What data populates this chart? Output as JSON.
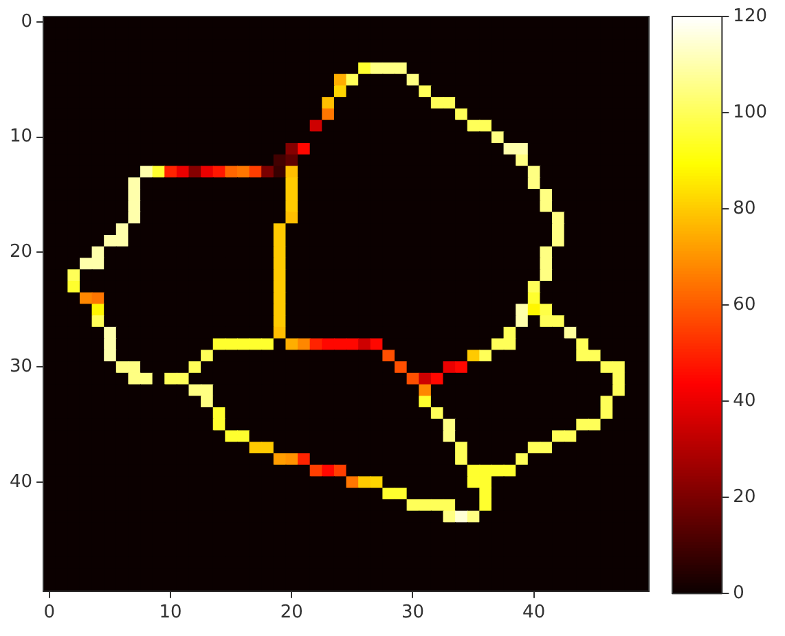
{
  "chart_data": {
    "type": "heatmap",
    "xlim": [
      -0.5,
      49.5
    ],
    "ylim": [
      49.5,
      -0.5
    ],
    "xticks": [
      0,
      10,
      20,
      30,
      40
    ],
    "yticks": [
      0,
      10,
      20,
      30,
      40
    ],
    "clim": [
      0,
      120
    ],
    "cticks": [
      0,
      20,
      40,
      60,
      80,
      100,
      120
    ],
    "cells": [
      [
        0,
        0,
        0,
        0,
        0,
        0,
        0,
        0,
        0,
        0,
        0,
        0,
        0,
        0,
        0,
        0,
        0,
        0,
        0,
        0,
        0,
        0,
        0,
        0,
        0,
        0,
        0,
        0,
        0,
        0,
        0,
        0,
        0,
        0,
        0,
        0,
        0,
        0,
        0,
        0,
        0,
        0,
        0,
        0,
        0,
        0,
        0,
        0,
        0,
        0
      ],
      [
        0,
        0,
        0,
        0,
        0,
        0,
        0,
        0,
        0,
        0,
        0,
        0,
        0,
        0,
        0,
        0,
        0,
        0,
        0,
        0,
        0,
        0,
        0,
        0,
        0,
        0,
        0,
        0,
        0,
        0,
        0,
        0,
        0,
        0,
        0,
        0,
        0,
        0,
        0,
        0,
        0,
        0,
        0,
        0,
        0,
        0,
        0,
        0,
        0,
        0
      ],
      [
        0,
        0,
        0,
        0,
        0,
        0,
        0,
        0,
        0,
        0,
        0,
        0,
        0,
        0,
        0,
        0,
        0,
        0,
        0,
        0,
        0,
        0,
        0,
        0,
        0,
        0,
        0,
        0,
        0,
        0,
        0,
        0,
        0,
        0,
        0,
        0,
        0,
        0,
        0,
        0,
        0,
        0,
        0,
        0,
        0,
        0,
        0,
        0,
        0,
        0
      ],
      [
        0,
        0,
        0,
        0,
        0,
        0,
        0,
        0,
        0,
        0,
        0,
        0,
        0,
        0,
        0,
        0,
        0,
        0,
        0,
        0,
        0,
        0,
        0,
        0,
        0,
        0,
        0,
        0,
        0,
        0,
        0,
        0,
        0,
        0,
        0,
        0,
        0,
        0,
        0,
        0,
        0,
        0,
        0,
        0,
        0,
        0,
        0,
        0,
        0,
        0
      ],
      [
        0,
        0,
        0,
        0,
        0,
        0,
        0,
        0,
        0,
        0,
        0,
        0,
        0,
        0,
        0,
        0,
        0,
        0,
        0,
        0,
        0,
        0,
        0,
        0,
        0,
        0,
        95,
        105,
        105,
        105,
        0,
        0,
        0,
        0,
        0,
        0,
        0,
        0,
        0,
        0,
        0,
        0,
        0,
        0,
        0,
        0,
        0,
        0,
        0,
        0
      ],
      [
        0,
        0,
        0,
        0,
        0,
        0,
        0,
        0,
        0,
        0,
        0,
        0,
        0,
        0,
        0,
        0,
        0,
        0,
        0,
        0,
        0,
        0,
        0,
        0,
        75,
        100,
        0,
        0,
        0,
        0,
        105,
        0,
        0,
        0,
        0,
        0,
        0,
        0,
        0,
        0,
        0,
        0,
        0,
        0,
        0,
        0,
        0,
        0,
        0,
        0
      ],
      [
        0,
        0,
        0,
        0,
        0,
        0,
        0,
        0,
        0,
        0,
        0,
        0,
        0,
        0,
        0,
        0,
        0,
        0,
        0,
        0,
        0,
        0,
        0,
        0,
        82,
        0,
        0,
        0,
        0,
        0,
        0,
        100,
        0,
        0,
        0,
        0,
        0,
        0,
        0,
        0,
        0,
        0,
        0,
        0,
        0,
        0,
        0,
        0,
        0,
        0
      ],
      [
        0,
        0,
        0,
        0,
        0,
        0,
        0,
        0,
        0,
        0,
        0,
        0,
        0,
        0,
        0,
        0,
        0,
        0,
        0,
        0,
        0,
        0,
        0,
        78,
        0,
        0,
        0,
        0,
        0,
        0,
        0,
        0,
        100,
        100,
        0,
        0,
        0,
        0,
        0,
        0,
        0,
        0,
        0,
        0,
        0,
        0,
        0,
        0,
        0,
        0
      ],
      [
        0,
        0,
        0,
        0,
        0,
        0,
        0,
        0,
        0,
        0,
        0,
        0,
        0,
        0,
        0,
        0,
        0,
        0,
        0,
        0,
        0,
        0,
        0,
        65,
        0,
        0,
        0,
        0,
        0,
        0,
        0,
        0,
        0,
        0,
        100,
        0,
        0,
        0,
        0,
        0,
        0,
        0,
        0,
        0,
        0,
        0,
        0,
        0,
        0,
        0
      ],
      [
        0,
        0,
        0,
        0,
        0,
        0,
        0,
        0,
        0,
        0,
        0,
        0,
        0,
        0,
        0,
        0,
        0,
        0,
        0,
        0,
        0,
        0,
        35,
        0,
        0,
        0,
        0,
        0,
        0,
        0,
        0,
        0,
        0,
        0,
        0,
        100,
        100,
        0,
        0,
        0,
        0,
        0,
        0,
        0,
        0,
        0,
        0,
        0,
        0,
        0
      ],
      [
        0,
        0,
        0,
        0,
        0,
        0,
        0,
        0,
        0,
        0,
        0,
        0,
        0,
        0,
        0,
        0,
        0,
        0,
        0,
        0,
        0,
        0,
        0,
        0,
        0,
        0,
        0,
        0,
        0,
        0,
        0,
        0,
        0,
        0,
        0,
        0,
        0,
        105,
        0,
        0,
        0,
        0,
        0,
        0,
        0,
        0,
        0,
        0,
        0,
        0
      ],
      [
        0,
        0,
        0,
        0,
        0,
        0,
        0,
        0,
        0,
        0,
        0,
        0,
        0,
        0,
        0,
        0,
        0,
        0,
        0,
        0,
        22,
        45,
        0,
        0,
        0,
        0,
        0,
        0,
        0,
        0,
        0,
        0,
        0,
        0,
        0,
        0,
        0,
        0,
        110,
        110,
        0,
        0,
        0,
        0,
        0,
        0,
        0,
        0,
        0,
        0
      ],
      [
        0,
        0,
        0,
        0,
        0,
        0,
        0,
        0,
        0,
        0,
        0,
        0,
        0,
        0,
        0,
        0,
        0,
        0,
        0,
        10,
        15,
        0,
        0,
        0,
        0,
        0,
        0,
        0,
        0,
        0,
        0,
        0,
        0,
        0,
        0,
        0,
        0,
        0,
        0,
        105,
        0,
        0,
        0,
        0,
        0,
        0,
        0,
        0,
        0,
        0
      ],
      [
        0,
        0,
        0,
        0,
        0,
        0,
        0,
        0,
        110,
        95,
        50,
        40,
        22,
        40,
        48,
        62,
        65,
        55,
        20,
        8,
        78,
        0,
        0,
        0,
        0,
        0,
        0,
        0,
        0,
        0,
        0,
        0,
        0,
        0,
        0,
        0,
        0,
        0,
        0,
        0,
        105,
        0,
        0,
        0,
        0,
        0,
        0,
        0,
        0,
        0
      ],
      [
        0,
        0,
        0,
        0,
        0,
        0,
        0,
        110,
        0,
        0,
        0,
        0,
        0,
        0,
        0,
        0,
        0,
        0,
        0,
        0,
        80,
        0,
        0,
        0,
        0,
        0,
        0,
        0,
        0,
        0,
        0,
        0,
        0,
        0,
        0,
        0,
        0,
        0,
        0,
        0,
        105,
        0,
        0,
        0,
        0,
        0,
        0,
        0,
        0,
        0
      ],
      [
        0,
        0,
        0,
        0,
        0,
        0,
        0,
        110,
        0,
        0,
        0,
        0,
        0,
        0,
        0,
        0,
        0,
        0,
        0,
        0,
        80,
        0,
        0,
        0,
        0,
        0,
        0,
        0,
        0,
        0,
        0,
        0,
        0,
        0,
        0,
        0,
        0,
        0,
        0,
        0,
        0,
        105,
        0,
        0,
        0,
        0,
        0,
        0,
        0,
        0
      ],
      [
        0,
        0,
        0,
        0,
        0,
        0,
        0,
        110,
        0,
        0,
        0,
        0,
        0,
        0,
        0,
        0,
        0,
        0,
        0,
        0,
        80,
        0,
        0,
        0,
        0,
        0,
        0,
        0,
        0,
        0,
        0,
        0,
        0,
        0,
        0,
        0,
        0,
        0,
        0,
        0,
        0,
        105,
        0,
        0,
        0,
        0,
        0,
        0,
        0,
        0
      ],
      [
        0,
        0,
        0,
        0,
        0,
        0,
        0,
        110,
        0,
        0,
        0,
        0,
        0,
        0,
        0,
        0,
        0,
        0,
        0,
        0,
        78,
        0,
        0,
        0,
        0,
        0,
        0,
        0,
        0,
        0,
        0,
        0,
        0,
        0,
        0,
        0,
        0,
        0,
        0,
        0,
        0,
        0,
        105,
        0,
        0,
        0,
        0,
        0,
        0,
        0
      ],
      [
        0,
        0,
        0,
        0,
        0,
        0,
        110,
        0,
        0,
        0,
        0,
        0,
        0,
        0,
        0,
        0,
        0,
        0,
        0,
        80,
        0,
        0,
        0,
        0,
        0,
        0,
        0,
        0,
        0,
        0,
        0,
        0,
        0,
        0,
        0,
        0,
        0,
        0,
        0,
        0,
        0,
        0,
        105,
        0,
        0,
        0,
        0,
        0,
        0,
        0
      ],
      [
        0,
        0,
        0,
        0,
        0,
        110,
        110,
        0,
        0,
        0,
        0,
        0,
        0,
        0,
        0,
        0,
        0,
        0,
        0,
        80,
        0,
        0,
        0,
        0,
        0,
        0,
        0,
        0,
        0,
        0,
        0,
        0,
        0,
        0,
        0,
        0,
        0,
        0,
        0,
        0,
        0,
        0,
        105,
        0,
        0,
        0,
        0,
        0,
        0,
        0
      ],
      [
        0,
        0,
        0,
        0,
        110,
        0,
        0,
        0,
        0,
        0,
        0,
        0,
        0,
        0,
        0,
        0,
        0,
        0,
        0,
        80,
        0,
        0,
        0,
        0,
        0,
        0,
        0,
        0,
        0,
        0,
        0,
        0,
        0,
        0,
        0,
        0,
        0,
        0,
        0,
        0,
        0,
        105,
        0,
        0,
        0,
        0,
        0,
        0,
        0,
        0
      ],
      [
        0,
        0,
        0,
        110,
        110,
        0,
        0,
        0,
        0,
        0,
        0,
        0,
        0,
        0,
        0,
        0,
        0,
        0,
        0,
        80,
        0,
        0,
        0,
        0,
        0,
        0,
        0,
        0,
        0,
        0,
        0,
        0,
        0,
        0,
        0,
        0,
        0,
        0,
        0,
        0,
        0,
        105,
        0,
        0,
        0,
        0,
        0,
        0,
        0,
        0
      ],
      [
        0,
        0,
        100,
        0,
        0,
        0,
        0,
        0,
        0,
        0,
        0,
        0,
        0,
        0,
        0,
        0,
        0,
        0,
        0,
        80,
        0,
        0,
        0,
        0,
        0,
        0,
        0,
        0,
        0,
        0,
        0,
        0,
        0,
        0,
        0,
        0,
        0,
        0,
        0,
        0,
        0,
        105,
        0,
        0,
        0,
        0,
        0,
        0,
        0,
        0
      ],
      [
        0,
        0,
        95,
        0,
        0,
        0,
        0,
        0,
        0,
        0,
        0,
        0,
        0,
        0,
        0,
        0,
        0,
        0,
        0,
        80,
        0,
        0,
        0,
        0,
        0,
        0,
        0,
        0,
        0,
        0,
        0,
        0,
        0,
        0,
        0,
        0,
        0,
        0,
        0,
        0,
        100,
        0,
        0,
        0,
        0,
        0,
        0,
        0,
        0,
        0
      ],
      [
        0,
        0,
        0,
        68,
        65,
        0,
        0,
        0,
        0,
        0,
        0,
        0,
        0,
        0,
        0,
        0,
        0,
        0,
        0,
        80,
        0,
        0,
        0,
        0,
        0,
        0,
        0,
        0,
        0,
        0,
        0,
        0,
        0,
        0,
        0,
        0,
        0,
        0,
        0,
        0,
        95,
        0,
        0,
        0,
        0,
        0,
        0,
        0,
        0,
        0
      ],
      [
        0,
        0,
        0,
        0,
        88,
        0,
        0,
        0,
        0,
        0,
        0,
        0,
        0,
        0,
        0,
        0,
        0,
        0,
        0,
        80,
        0,
        0,
        0,
        0,
        0,
        0,
        0,
        0,
        0,
        0,
        0,
        0,
        0,
        0,
        0,
        0,
        0,
        0,
        0,
        110,
        88,
        98,
        0,
        0,
        0,
        0,
        0,
        0,
        0,
        0
      ],
      [
        0,
        0,
        0,
        0,
        100,
        0,
        0,
        0,
        0,
        0,
        0,
        0,
        0,
        0,
        0,
        0,
        0,
        0,
        0,
        80,
        0,
        0,
        0,
        0,
        0,
        0,
        0,
        0,
        0,
        0,
        0,
        0,
        0,
        0,
        0,
        0,
        0,
        0,
        0,
        110,
        0,
        100,
        100,
        0,
        0,
        0,
        0,
        0,
        0,
        0
      ],
      [
        0,
        0,
        0,
        0,
        0,
        110,
        0,
        0,
        0,
        0,
        0,
        0,
        0,
        0,
        0,
        0,
        0,
        0,
        0,
        78,
        0,
        0,
        0,
        0,
        0,
        0,
        0,
        0,
        0,
        0,
        0,
        0,
        0,
        0,
        0,
        0,
        0,
        0,
        100,
        0,
        0,
        0,
        0,
        108,
        0,
        0,
        0,
        0,
        0,
        0
      ],
      [
        0,
        0,
        0,
        0,
        0,
        110,
        0,
        0,
        0,
        0,
        0,
        0,
        0,
        0,
        95,
        95,
        95,
        95,
        95,
        0,
        75,
        68,
        50,
        45,
        45,
        45,
        35,
        45,
        0,
        0,
        0,
        0,
        0,
        0,
        0,
        0,
        0,
        100,
        100,
        0,
        0,
        0,
        0,
        0,
        100,
        0,
        0,
        0,
        0,
        0
      ],
      [
        0,
        0,
        0,
        0,
        0,
        110,
        0,
        0,
        0,
        0,
        0,
        0,
        0,
        100,
        0,
        0,
        0,
        0,
        0,
        0,
        0,
        0,
        0,
        0,
        0,
        0,
        0,
        0,
        58,
        0,
        0,
        0,
        0,
        0,
        0,
        80,
        100,
        0,
        0,
        0,
        0,
        0,
        0,
        0,
        100,
        100,
        0,
        0,
        0,
        0
      ],
      [
        0,
        0,
        0,
        0,
        0,
        0,
        105,
        105,
        0,
        0,
        0,
        0,
        100,
        0,
        0,
        0,
        0,
        0,
        0,
        0,
        0,
        0,
        0,
        0,
        0,
        0,
        0,
        0,
        0,
        58,
        0,
        0,
        0,
        40,
        45,
        0,
        0,
        0,
        0,
        0,
        0,
        0,
        0,
        0,
        0,
        0,
        100,
        100,
        0,
        0
      ],
      [
        0,
        0,
        0,
        0,
        0,
        0,
        0,
        105,
        105,
        0,
        100,
        100,
        0,
        0,
        0,
        0,
        0,
        0,
        0,
        0,
        0,
        0,
        0,
        0,
        0,
        0,
        0,
        0,
        0,
        0,
        58,
        35,
        45,
        0,
        0,
        0,
        0,
        0,
        0,
        0,
        0,
        0,
        0,
        0,
        0,
        0,
        0,
        100,
        0,
        0
      ],
      [
        0,
        0,
        0,
        0,
        0,
        0,
        0,
        0,
        0,
        0,
        0,
        0,
        105,
        105,
        0,
        0,
        0,
        0,
        0,
        0,
        0,
        0,
        0,
        0,
        0,
        0,
        0,
        0,
        0,
        0,
        0,
        68,
        0,
        0,
        0,
        0,
        0,
        0,
        0,
        0,
        0,
        0,
        0,
        0,
        0,
        0,
        0,
        100,
        0,
        0
      ],
      [
        0,
        0,
        0,
        0,
        0,
        0,
        0,
        0,
        0,
        0,
        0,
        0,
        0,
        105,
        0,
        0,
        0,
        0,
        0,
        0,
        0,
        0,
        0,
        0,
        0,
        0,
        0,
        0,
        0,
        0,
        0,
        95,
        0,
        0,
        0,
        0,
        0,
        0,
        0,
        0,
        0,
        0,
        0,
        0,
        0,
        0,
        100,
        0,
        0,
        0
      ],
      [
        0,
        0,
        0,
        0,
        0,
        0,
        0,
        0,
        0,
        0,
        0,
        0,
        0,
        0,
        95,
        0,
        0,
        0,
        0,
        0,
        0,
        0,
        0,
        0,
        0,
        0,
        0,
        0,
        0,
        0,
        0,
        0,
        100,
        0,
        0,
        0,
        0,
        0,
        0,
        0,
        0,
        0,
        0,
        0,
        0,
        0,
        100,
        0,
        0,
        0
      ],
      [
        0,
        0,
        0,
        0,
        0,
        0,
        0,
        0,
        0,
        0,
        0,
        0,
        0,
        0,
        95,
        0,
        0,
        0,
        0,
        0,
        0,
        0,
        0,
        0,
        0,
        0,
        0,
        0,
        0,
        0,
        0,
        0,
        0,
        105,
        0,
        0,
        0,
        0,
        0,
        0,
        0,
        0,
        0,
        0,
        100,
        100,
        0,
        0,
        0,
        0
      ],
      [
        0,
        0,
        0,
        0,
        0,
        0,
        0,
        0,
        0,
        0,
        0,
        0,
        0,
        0,
        0,
        95,
        95,
        0,
        0,
        0,
        0,
        0,
        0,
        0,
        0,
        0,
        0,
        0,
        0,
        0,
        0,
        0,
        0,
        105,
        0,
        0,
        0,
        0,
        0,
        0,
        0,
        0,
        100,
        100,
        0,
        0,
        0,
        0,
        0,
        0
      ],
      [
        0,
        0,
        0,
        0,
        0,
        0,
        0,
        0,
        0,
        0,
        0,
        0,
        0,
        0,
        0,
        0,
        0,
        80,
        80,
        0,
        0,
        0,
        0,
        0,
        0,
        0,
        0,
        0,
        0,
        0,
        0,
        0,
        0,
        0,
        100,
        0,
        0,
        0,
        0,
        0,
        100,
        100,
        0,
        0,
        0,
        0,
        0,
        0,
        0,
        0
      ],
      [
        0,
        0,
        0,
        0,
        0,
        0,
        0,
        0,
        0,
        0,
        0,
        0,
        0,
        0,
        0,
        0,
        0,
        0,
        0,
        72,
        70,
        50,
        0,
        0,
        0,
        0,
        0,
        0,
        0,
        0,
        0,
        0,
        0,
        0,
        100,
        0,
        0,
        0,
        0,
        100,
        0,
        0,
        0,
        0,
        0,
        0,
        0,
        0,
        0,
        0
      ],
      [
        0,
        0,
        0,
        0,
        0,
        0,
        0,
        0,
        0,
        0,
        0,
        0,
        0,
        0,
        0,
        0,
        0,
        0,
        0,
        0,
        0,
        0,
        55,
        45,
        55,
        0,
        0,
        0,
        0,
        0,
        0,
        0,
        0,
        0,
        0,
        95,
        95,
        95,
        95,
        0,
        0,
        0,
        0,
        0,
        0,
        0,
        0,
        0,
        0,
        0
      ],
      [
        0,
        0,
        0,
        0,
        0,
        0,
        0,
        0,
        0,
        0,
        0,
        0,
        0,
        0,
        0,
        0,
        0,
        0,
        0,
        0,
        0,
        0,
        0,
        0,
        0,
        65,
        80,
        82,
        0,
        0,
        0,
        0,
        0,
        0,
        0,
        95,
        95,
        0,
        0,
        0,
        0,
        0,
        0,
        0,
        0,
        0,
        0,
        0,
        0,
        0
      ],
      [
        0,
        0,
        0,
        0,
        0,
        0,
        0,
        0,
        0,
        0,
        0,
        0,
        0,
        0,
        0,
        0,
        0,
        0,
        0,
        0,
        0,
        0,
        0,
        0,
        0,
        0,
        0,
        0,
        95,
        95,
        0,
        0,
        0,
        0,
        0,
        0,
        95,
        0,
        0,
        0,
        0,
        0,
        0,
        0,
        0,
        0,
        0,
        0,
        0,
        0
      ],
      [
        0,
        0,
        0,
        0,
        0,
        0,
        0,
        0,
        0,
        0,
        0,
        0,
        0,
        0,
        0,
        0,
        0,
        0,
        0,
        0,
        0,
        0,
        0,
        0,
        0,
        0,
        0,
        0,
        0,
        0,
        100,
        100,
        100,
        100,
        0,
        0,
        95,
        0,
        0,
        0,
        0,
        0,
        0,
        0,
        0,
        0,
        0,
        0,
        0,
        0
      ],
      [
        0,
        0,
        0,
        0,
        0,
        0,
        0,
        0,
        0,
        0,
        0,
        0,
        0,
        0,
        0,
        0,
        0,
        0,
        0,
        0,
        0,
        0,
        0,
        0,
        0,
        0,
        0,
        0,
        0,
        0,
        0,
        0,
        0,
        105,
        115,
        105,
        0,
        0,
        0,
        0,
        0,
        0,
        0,
        0,
        0,
        0,
        0,
        0,
        0,
        0
      ],
      [
        0,
        0,
        0,
        0,
        0,
        0,
        0,
        0,
        0,
        0,
        0,
        0,
        0,
        0,
        0,
        0,
        0,
        0,
        0,
        0,
        0,
        0,
        0,
        0,
        0,
        0,
        0,
        0,
        0,
        0,
        0,
        0,
        0,
        0,
        0,
        0,
        0,
        0,
        0,
        0,
        0,
        0,
        0,
        0,
        0,
        0,
        0,
        0,
        0,
        0
      ],
      [
        0,
        0,
        0,
        0,
        0,
        0,
        0,
        0,
        0,
        0,
        0,
        0,
        0,
        0,
        0,
        0,
        0,
        0,
        0,
        0,
        0,
        0,
        0,
        0,
        0,
        0,
        0,
        0,
        0,
        0,
        0,
        0,
        0,
        0,
        0,
        0,
        0,
        0,
        0,
        0,
        0,
        0,
        0,
        0,
        0,
        0,
        0,
        0,
        0,
        0
      ],
      [
        0,
        0,
        0,
        0,
        0,
        0,
        0,
        0,
        0,
        0,
        0,
        0,
        0,
        0,
        0,
        0,
        0,
        0,
        0,
        0,
        0,
        0,
        0,
        0,
        0,
        0,
        0,
        0,
        0,
        0,
        0,
        0,
        0,
        0,
        0,
        0,
        0,
        0,
        0,
        0,
        0,
        0,
        0,
        0,
        0,
        0,
        0,
        0,
        0,
        0
      ],
      [
        0,
        0,
        0,
        0,
        0,
        0,
        0,
        0,
        0,
        0,
        0,
        0,
        0,
        0,
        0,
        0,
        0,
        0,
        0,
        0,
        0,
        0,
        0,
        0,
        0,
        0,
        0,
        0,
        0,
        0,
        0,
        0,
        0,
        0,
        0,
        0,
        0,
        0,
        0,
        0,
        0,
        0,
        0,
        0,
        0,
        0,
        0,
        0,
        0,
        0
      ],
      [
        0,
        0,
        0,
        0,
        0,
        0,
        0,
        0,
        0,
        0,
        0,
        0,
        0,
        0,
        0,
        0,
        0,
        0,
        0,
        0,
        0,
        0,
        0,
        0,
        0,
        0,
        0,
        0,
        0,
        0,
        0,
        0,
        0,
        0,
        0,
        0,
        0,
        0,
        0,
        0,
        0,
        0,
        0,
        0,
        0,
        0,
        0,
        0,
        0,
        0
      ],
      [
        0,
        0,
        0,
        0,
        0,
        0,
        0,
        0,
        0,
        0,
        0,
        0,
        0,
        0,
        0,
        0,
        0,
        0,
        0,
        0,
        0,
        0,
        0,
        0,
        0,
        0,
        0,
        0,
        0,
        0,
        0,
        0,
        0,
        0,
        0,
        0,
        0,
        0,
        0,
        0,
        0,
        0,
        0,
        0,
        0,
        0,
        0,
        0,
        0,
        0
      ]
    ]
  }
}
